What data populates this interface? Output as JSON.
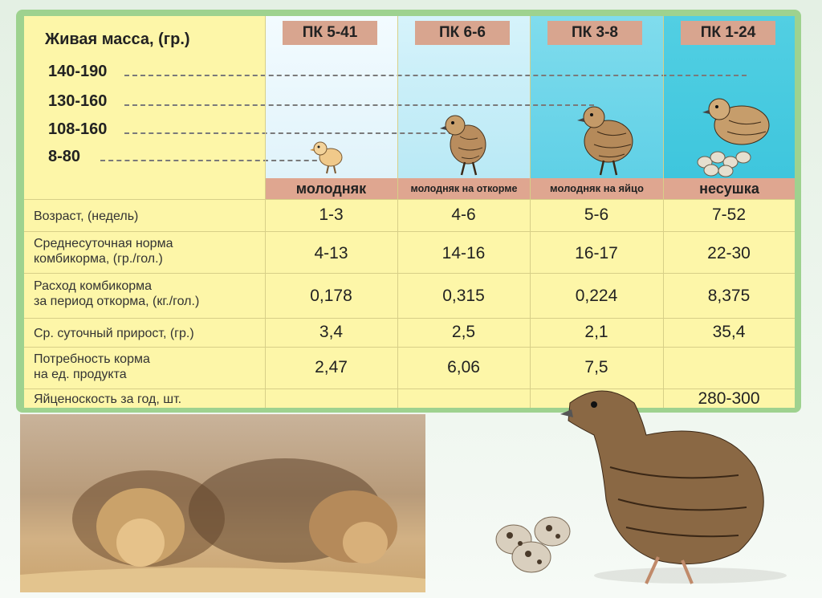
{
  "mass_header": "Живая масса, (гр.)",
  "mass_levels": [
    "140-190",
    "130-160",
    "108-160",
    "8-80"
  ],
  "feeds": [
    "ПК 5-41",
    "ПК 6-6",
    "ПК 3-8",
    "ПК 1-24"
  ],
  "categories": [
    "молодняк",
    "молодняк на откорме",
    "молодняк на яйцо",
    "несушка"
  ],
  "rows": [
    {
      "label": "Возраст, (недель)",
      "values": [
        "1-3",
        "4-6",
        "5-6",
        "7-52"
      ]
    },
    {
      "label": "Среднесуточная норма\nкомбикорма, (гр./гол.)",
      "values": [
        "4-13",
        "14-16",
        "16-17",
        "22-30"
      ]
    },
    {
      "label": "Расход комбикорма\nза период откорма, (кг./гол.)",
      "values": [
        "0,178",
        "0,315",
        "0,224",
        "8,375"
      ]
    },
    {
      "label": "Ср. суточный прирост, (гр.)",
      "values": [
        "3,4",
        "2,5",
        "2,1",
        "35,4"
      ]
    },
    {
      "label": "Потребность корма\nна ед. продукта",
      "values": [
        "2,47",
        "6,06",
        "7,5",
        ""
      ]
    },
    {
      "label": "Яйценоскость за год, шт.",
      "values": [
        "",
        "",
        "",
        "280-300"
      ]
    }
  ],
  "colors": {
    "frame": "#9ed28f",
    "table_bg": "#fdf6a8",
    "header_tab": "#d8a58f",
    "col1": "#e3f3fb",
    "col2": "#c5edf7",
    "col3": "#6fd6e8",
    "col4": "#4ecfe0"
  }
}
